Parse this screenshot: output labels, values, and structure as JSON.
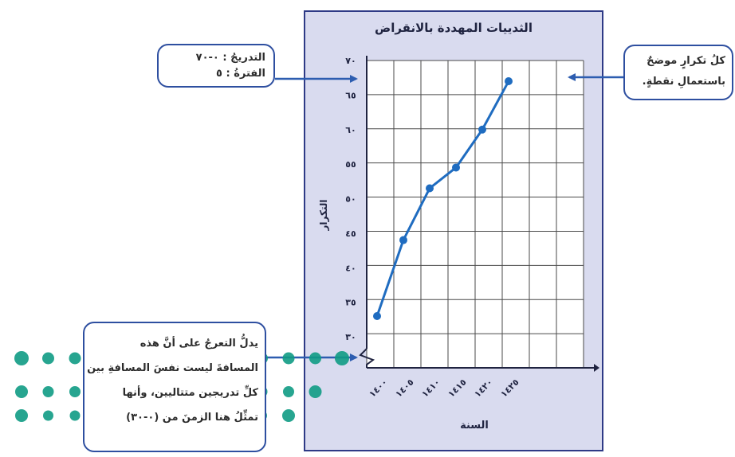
{
  "colors": {
    "panel_bg": "#d9dbef",
    "panel_border": "#2e3a86",
    "series_line": "#1f6cc0",
    "arrow": "#2d5db0",
    "teal_dots": "#0f9b84"
  },
  "callouts": {
    "scale": {
      "line1": "التدريجُ : ٠-٧٠",
      "line2": "الفترةُ : ٥"
    },
    "point": {
      "line1": "كلُ تكرارٍ موضحٌ",
      "line2": "باستعمالِ نقطةٍ."
    },
    "break": {
      "line1": "يدلُّ التعرجُ على أنَّ هذه",
      "line2": "المسافةَ ليست نفسَ المسافةِ بين",
      "line3": "كلِّ تدريجين متتاليين، وأنها",
      "line4": "تمثِّلُ هنا الزمنَ من (٠-٣٠)"
    }
  },
  "chart_data": {
    "type": "line",
    "title": "الثدييات المهددة بالانقراض",
    "xlabel": "السنة",
    "ylabel": "التكرار",
    "x_ticks": [
      "١٤٠٠",
      "١٤٠٥",
      "١٤١٠",
      "١٤١٥",
      "١٤٢٠",
      "١٤٢٥"
    ],
    "y_ticks": [
      "٣٠",
      "٣٥",
      "٤٠",
      "٤٥",
      "٥٠",
      "٥٥",
      "٦٠",
      "٦٥",
      "٧٠"
    ],
    "x": [
      1400,
      1405,
      1410,
      1415,
      1420,
      1425
    ],
    "series": [
      {
        "values": [
          33,
          44,
          51.5,
          54.5,
          60,
          67
        ]
      }
    ],
    "ylim": [
      30,
      70
    ],
    "y_axis_break": true,
    "grid": true
  }
}
